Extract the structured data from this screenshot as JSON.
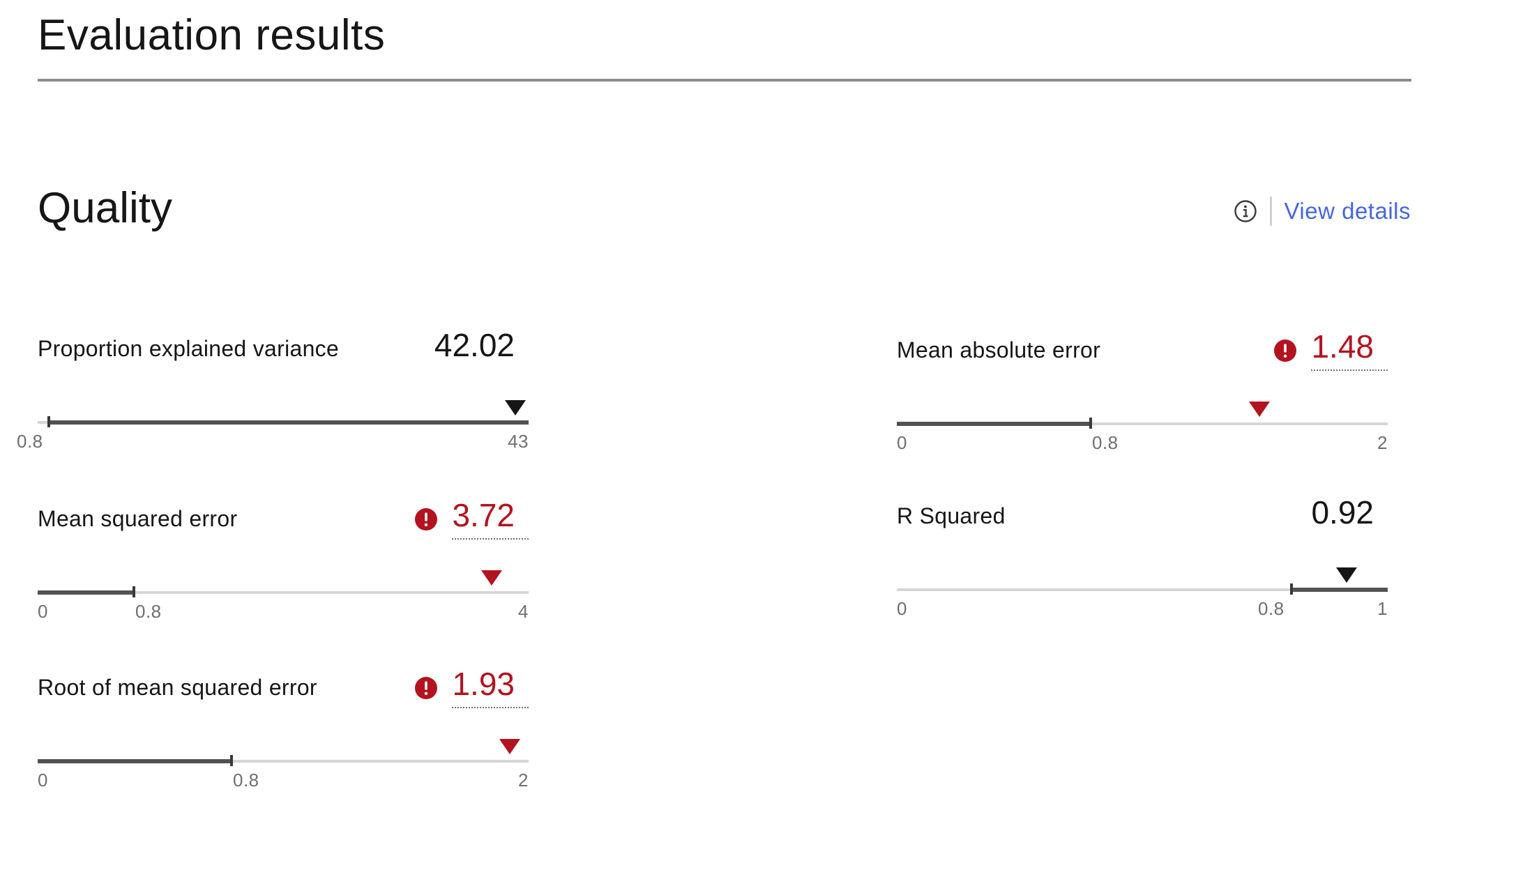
{
  "page": {
    "title": "Evaluation results"
  },
  "section": {
    "title": "Quality",
    "info_icon": "info-circle-icon",
    "view_details_label": "View details"
  },
  "colors": {
    "alert": "#b3131f",
    "link": "#4466e0",
    "text": "#161616",
    "track": "#d6d6d6",
    "track_fill": "#525252"
  },
  "metrics": {
    "pev": {
      "label": "Proportion explained variance",
      "value": "42.02",
      "status": "ok",
      "scale_min": "0.8",
      "scale_max": "43",
      "threshold_range": [
        0.8,
        43
      ],
      "value_numeric": 42.02
    },
    "mae": {
      "label": "Mean absolute error",
      "value": "1.48",
      "status": "alert",
      "scale_min": "0",
      "threshold": "0.8",
      "scale_max": "2",
      "threshold_range": [
        0,
        0.8
      ],
      "value_numeric": 1.48
    },
    "mse": {
      "label": "Mean squared error",
      "value": "3.72",
      "status": "alert",
      "scale_min": "0",
      "threshold": "0.8",
      "scale_max": "4",
      "threshold_range": [
        0,
        0.8
      ],
      "value_numeric": 3.72
    },
    "r2": {
      "label": "R Squared",
      "value": "0.92",
      "status": "ok",
      "scale_min": "0",
      "threshold": "0.8",
      "scale_max": "1",
      "threshold_range": [
        0.8,
        1
      ],
      "value_numeric": 0.92
    },
    "rmse": {
      "label": "Root of mean squared error",
      "value": "1.93",
      "status": "alert",
      "scale_min": "0",
      "threshold": "0.8",
      "scale_max": "2",
      "threshold_range": [
        0,
        0.8
      ],
      "value_numeric": 1.93
    }
  }
}
